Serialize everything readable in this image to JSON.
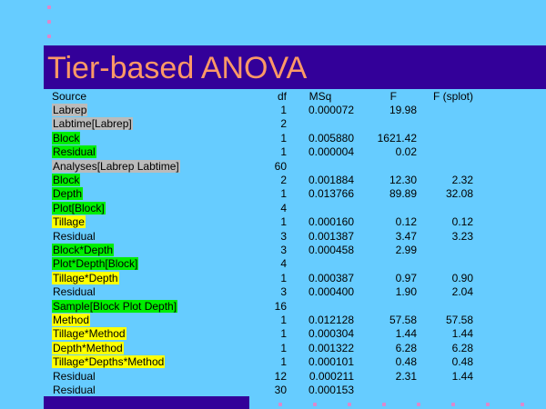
{
  "title": "Tier-based ANOVA",
  "headers": {
    "source": "Source",
    "df": "df",
    "msq": "MSq",
    "f": "F",
    "fs": "F (splot)"
  },
  "rows": [
    {
      "source": "Labrep",
      "df": "1",
      "msq": "0.000072",
      "f": "19.98",
      "fs": "",
      "indent": 0,
      "hl": "grey"
    },
    {
      "source": "Labtime[Labrep]",
      "df": "2",
      "msq": "",
      "f": "",
      "fs": "",
      "indent": 0,
      "hl": "grey"
    },
    {
      "source": "Block",
      "df": "1",
      "msq": "0.005880",
      "f": "1621.42",
      "fs": "",
      "indent": 1,
      "hl": "green"
    },
    {
      "source": "Residual",
      "df": "1",
      "msq": "0.000004",
      "f": "0.02",
      "fs": "",
      "indent": 1,
      "hl": "green"
    },
    {
      "source": "Analyses[Labrep Labtime]",
      "df": "60",
      "msq": "",
      "f": "",
      "fs": "",
      "indent": 0,
      "hl": "grey"
    },
    {
      "source": "Block",
      "df": "2",
      "msq": "0.001884",
      "f": "12.30",
      "fs": "2.32",
      "indent": 1,
      "hl": "green"
    },
    {
      "source": "Depth",
      "df": "1",
      "msq": "0.013766",
      "f": "89.89",
      "fs": "32.08",
      "indent": 1,
      "hl": "green"
    },
    {
      "source": "Plot[Block]",
      "df": "4",
      "msq": "",
      "f": "",
      "fs": "",
      "indent": 1,
      "hl": "green"
    },
    {
      "source": "Tillage",
      "df": "1",
      "msq": "0.000160",
      "f": "0.12",
      "fs": "0.12",
      "indent": 2,
      "hl": "yellow"
    },
    {
      "source": "Residual",
      "df": "3",
      "msq": "0.001387",
      "f": "3.47",
      "fs": "3.23",
      "indent": 2,
      "hl": ""
    },
    {
      "source": "Block*Depth",
      "df": "3",
      "msq": "0.000458",
      "f": "2.99",
      "fs": "",
      "indent": 1,
      "hl": "green"
    },
    {
      "source": "Plot*Depth[Block]",
      "df": "4",
      "msq": "",
      "f": "",
      "fs": "",
      "indent": 1,
      "hl": "green"
    },
    {
      "source": "Tillage*Depth",
      "df": "1",
      "msq": "0.000387",
      "f": "0.97",
      "fs": "0.90",
      "indent": 2,
      "hl": "yellow"
    },
    {
      "source": "Residual",
      "df": "3",
      "msq": "0.000400",
      "f": "1.90",
      "fs": "2.04",
      "indent": 2,
      "hl": ""
    },
    {
      "source": "Sample[Block Plot Depth]",
      "df": "16",
      "msq": "",
      "f": "",
      "fs": "",
      "indent": 1,
      "hl": "green"
    },
    {
      "source": "Method",
      "df": "1",
      "msq": "0.012128",
      "f": "57.58",
      "fs": "57.58",
      "indent": 2,
      "hl": "yellow"
    },
    {
      "source": "Tillage*Method",
      "df": "1",
      "msq": "0.000304",
      "f": "1.44",
      "fs": "1.44",
      "indent": 2,
      "hl": "yellow"
    },
    {
      "source": "Depth*Method",
      "df": "1",
      "msq": "0.001322",
      "f": "6.28",
      "fs": "6.28",
      "indent": 2,
      "hl": "yellow"
    },
    {
      "source": "Tillage*Depths*Method",
      "df": "1",
      "msq": "0.000101",
      "f": "0.48",
      "fs": "0.48",
      "indent": 2,
      "hl": "yellow"
    },
    {
      "source": "Residual",
      "df": "12",
      "msq": "0.000211",
      "f": "2.31",
      "fs": "1.44",
      "indent": 2,
      "hl": ""
    },
    {
      "source": "Residual",
      "df": "30",
      "msq": "0.000153",
      "f": "",
      "fs": "",
      "indent": 1,
      "hl": ""
    }
  ],
  "colors": {
    "background": "#66ccff",
    "title_bar": "#330099",
    "title_text": "#ff9966",
    "highlight_grey": "#bbbbbb",
    "highlight_green": "#00ee00",
    "highlight_yellow": "#ffff00",
    "dot": "#dd88cc"
  }
}
